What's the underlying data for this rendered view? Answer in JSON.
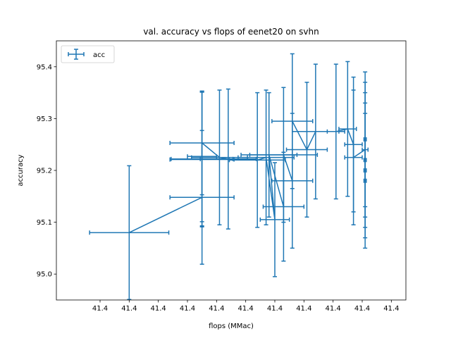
{
  "chart_data": {
    "type": "line",
    "title": "val. accuracy vs flops of eenet20 on svhn",
    "xlabel": "flops (MMac)",
    "ylabel": "accuracy",
    "xlim": [
      41.3525,
      41.4125
    ],
    "ylim": [
      94.95,
      95.45
    ],
    "x_ticks": [
      41.36,
      41.365,
      41.37,
      41.375,
      41.38,
      41.385,
      41.39,
      41.395,
      41.4,
      41.405,
      41.41
    ],
    "x_tick_labels": [
      "41.4",
      "41.4",
      "41.4",
      "41.4",
      "41.4",
      "41.4",
      "41.4",
      "41.4",
      "41.4",
      "41.4",
      "41.4"
    ],
    "y_ticks": [
      95.0,
      95.1,
      95.2,
      95.3,
      95.4
    ],
    "y_tick_labels": [
      "95.0",
      "95.1",
      "95.2",
      "95.3",
      "95.4"
    ],
    "grid": false,
    "legend": {
      "placement": "upper-left",
      "entries": [
        "acc"
      ]
    },
    "color": "#1f77b4",
    "series": [
      {
        "name": "acc",
        "points": [
          {
            "x": 41.365,
            "y": 95.08,
            "xerr": 0.0068,
            "yerr": 0.129
          },
          {
            "x": 41.3775,
            "y": 95.148,
            "xerr": 0.0055,
            "yerr": 0.129
          },
          {
            "x": 41.3775,
            "y": 95.222,
            "xerr": 0.0053,
            "yerr": 0.129
          },
          {
            "x": 41.3775,
            "y": 95.227,
            "xerr": 0.0025,
            "yerr": 0.126
          },
          {
            "x": 41.3775,
            "y": 95.221,
            "xerr": 0.0055,
            "yerr": 0.13
          },
          {
            "x": 41.3775,
            "y": 95.253,
            "xerr": 0.0055,
            "yerr": 0.1
          },
          {
            "x": 41.3805,
            "y": 95.225,
            "xerr": 0.0048,
            "yerr": 0.13
          },
          {
            "x": 41.382,
            "y": 95.222,
            "xerr": 0.0048,
            "yerr": 0.135
          },
          {
            "x": 41.387,
            "y": 95.22,
            "xerr": 0.0048,
            "yerr": 0.13
          },
          {
            "x": 41.3885,
            "y": 95.225,
            "xerr": 0.0048,
            "yerr": 0.13
          },
          {
            "x": 41.39,
            "y": 95.105,
            "xerr": 0.0025,
            "yerr": 0.11
          },
          {
            "x": 41.389,
            "y": 95.23,
            "xerr": 0.0048,
            "yerr": 0.12
          },
          {
            "x": 41.3915,
            "y": 95.13,
            "xerr": 0.0035,
            "yerr": 0.105
          },
          {
            "x": 41.3915,
            "y": 95.23,
            "xerr": 0.0058,
            "yerr": 0.13
          },
          {
            "x": 41.393,
            "y": 95.18,
            "xerr": 0.0035,
            "yerr": 0.13
          },
          {
            "x": 41.393,
            "y": 95.295,
            "xerr": 0.0035,
            "yerr": 0.13
          },
          {
            "x": 41.3955,
            "y": 95.24,
            "xerr": 0.0035,
            "yerr": 0.13
          },
          {
            "x": 41.397,
            "y": 95.275,
            "xerr": 0.004,
            "yerr": 0.13
          },
          {
            "x": 41.4005,
            "y": 95.275,
            "xerr": 0.0015,
            "yerr": 0.13
          },
          {
            "x": 41.4025,
            "y": 95.28,
            "xerr": 0.0015,
            "yerr": 0.13
          },
          {
            "x": 41.4035,
            "y": 95.25,
            "xerr": 0.0015,
            "yerr": 0.13
          },
          {
            "x": 41.4035,
            "y": 95.225,
            "xerr": 0.0015,
            "yerr": 0.13
          },
          {
            "x": 41.4055,
            "y": 95.24,
            "xerr": 0.0005,
            "yerr": 0.13
          },
          {
            "x": 41.4055,
            "y": 95.2,
            "xerr": 0.0002,
            "yerr": 0.13
          },
          {
            "x": 41.4055,
            "y": 95.22,
            "xerr": 0.0002,
            "yerr": 0.13
          },
          {
            "x": 41.4055,
            "y": 95.26,
            "xerr": 0.0002,
            "yerr": 0.13
          },
          {
            "x": 41.4055,
            "y": 95.18,
            "xerr": 0.0002,
            "yerr": 0.13
          }
        ]
      }
    ]
  }
}
